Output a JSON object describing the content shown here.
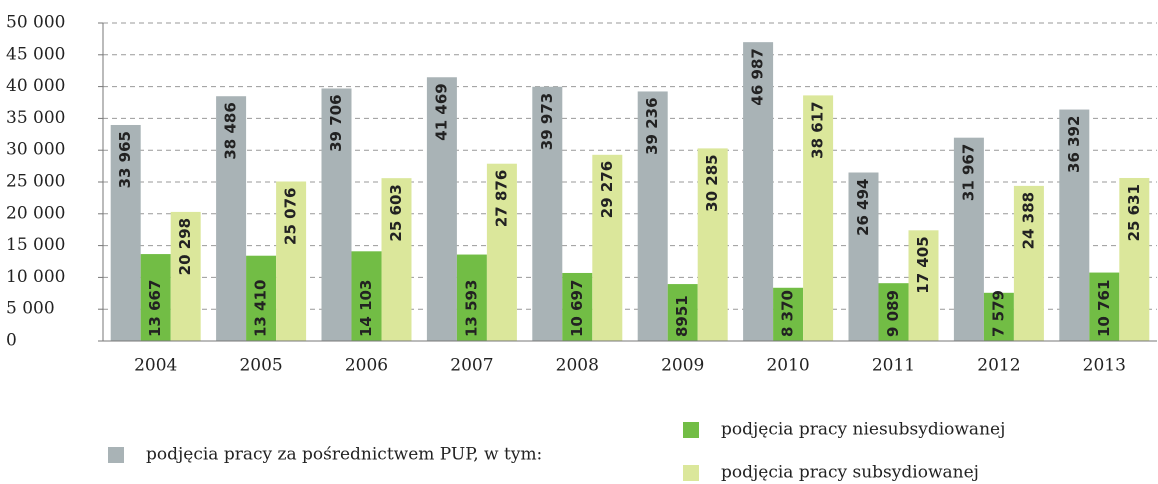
{
  "chart_data": {
    "type": "bar",
    "categories": [
      "2004",
      "2005",
      "2006",
      "2007",
      "2008",
      "2009",
      "2010",
      "2011",
      "2012",
      "2013"
    ],
    "series": [
      {
        "name": "podjęcia pracy za pośrednictwem PUP, w tym:",
        "color": "#a9b3b6",
        "values": [
          33965,
          38486,
          39706,
          41469,
          39973,
          39236,
          46987,
          26494,
          31967,
          36392
        ],
        "value_labels": [
          "33 965",
          "38 486",
          "39 706",
          "41 469",
          "39 973",
          "39 236",
          "46 987",
          "26 494",
          "31 967",
          "36 392"
        ]
      },
      {
        "name": "podjęcia pracy niesubsydiowanej",
        "color": "#72bd45",
        "values": [
          13667,
          13410,
          14103,
          13593,
          10697,
          8951,
          8370,
          9089,
          7579,
          10761
        ],
        "value_labels": [
          "13 667",
          "13 410",
          "14 103",
          "13 593",
          "10 697",
          "8951",
          "8 370",
          "9 089",
          "7 579",
          "10 761"
        ]
      },
      {
        "name": "podjęcia pracy subsydiowanej",
        "color": "#dbe79b",
        "values": [
          20298,
          25076,
          25603,
          27876,
          29276,
          30285,
          38617,
          17405,
          24388,
          25631
        ],
        "value_labels": [
          "20 298",
          "25 076",
          "25 603",
          "27 876",
          "29 276",
          "30 285",
          "38 617",
          "17 405",
          "24 388",
          "25 631"
        ]
      }
    ],
    "ylim": [
      0,
      50000
    ],
    "yticks": [
      0,
      {
        "value": 5000,
        "label": "5 000"
      },
      {
        "value": 10000,
        "label": "10 000"
      },
      {
        "value": 15000,
        "label": "15 000"
      },
      {
        "value": 20000,
        "label": "20 000"
      },
      {
        "value": 25000,
        "label": "25 000"
      },
      {
        "value": 30000,
        "label": "30 000"
      },
      {
        "value": 35000,
        "label": "35 000"
      },
      {
        "value": 40000,
        "label": "40 000"
      },
      {
        "value": 45000,
        "label": "45 000"
      },
      {
        "value": 50000,
        "label": "50 000"
      }
    ],
    "grid": true
  }
}
